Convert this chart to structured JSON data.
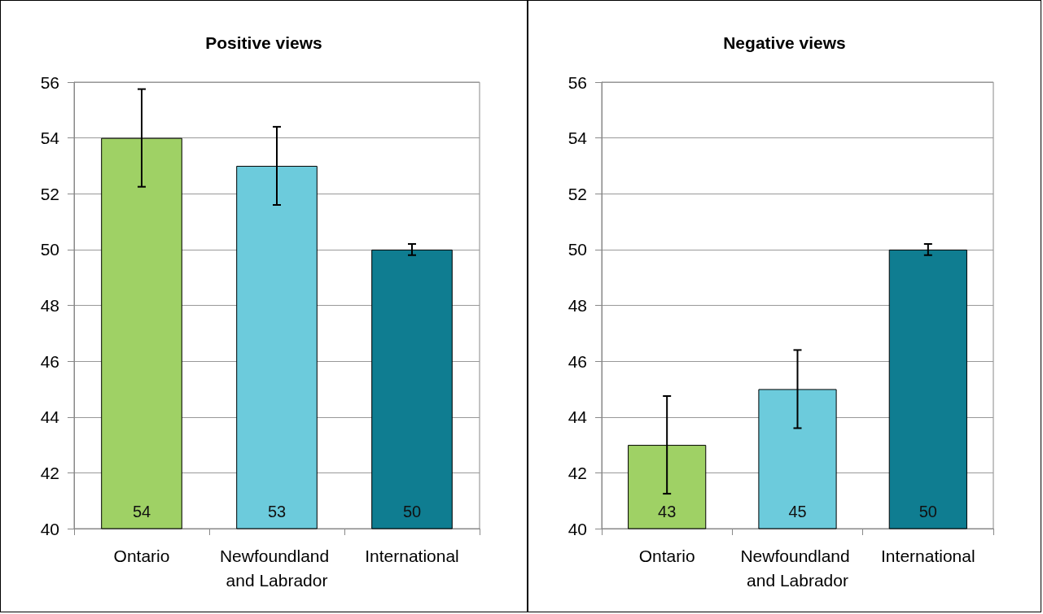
{
  "chart_data": [
    {
      "type": "bar",
      "title": "Positive views",
      "categories": [
        "Ontario",
        "Newfoundland and Labrador",
        "International"
      ],
      "values": [
        54,
        53,
        50
      ],
      "colors": [
        "#9fd165",
        "#6ccbdc",
        "#0f7d91"
      ],
      "errors": [
        1.75,
        1.4,
        0.2
      ],
      "ylim": [
        40,
        56
      ],
      "yticks": [
        40,
        42,
        44,
        46,
        48,
        50,
        52,
        54,
        56
      ],
      "grid": "y",
      "data_labels": true
    },
    {
      "type": "bar",
      "title": "Negative views",
      "categories": [
        "Ontario",
        "Newfoundland and Labrador",
        "International"
      ],
      "values": [
        43,
        45,
        50
      ],
      "colors": [
        "#9fd165",
        "#6ccbdc",
        "#0f7d91"
      ],
      "errors": [
        1.75,
        1.4,
        0.2
      ],
      "ylim": [
        40,
        56
      ],
      "yticks": [
        40,
        42,
        44,
        46,
        48,
        50,
        52,
        54,
        56
      ],
      "grid": "y",
      "data_labels": true
    }
  ]
}
